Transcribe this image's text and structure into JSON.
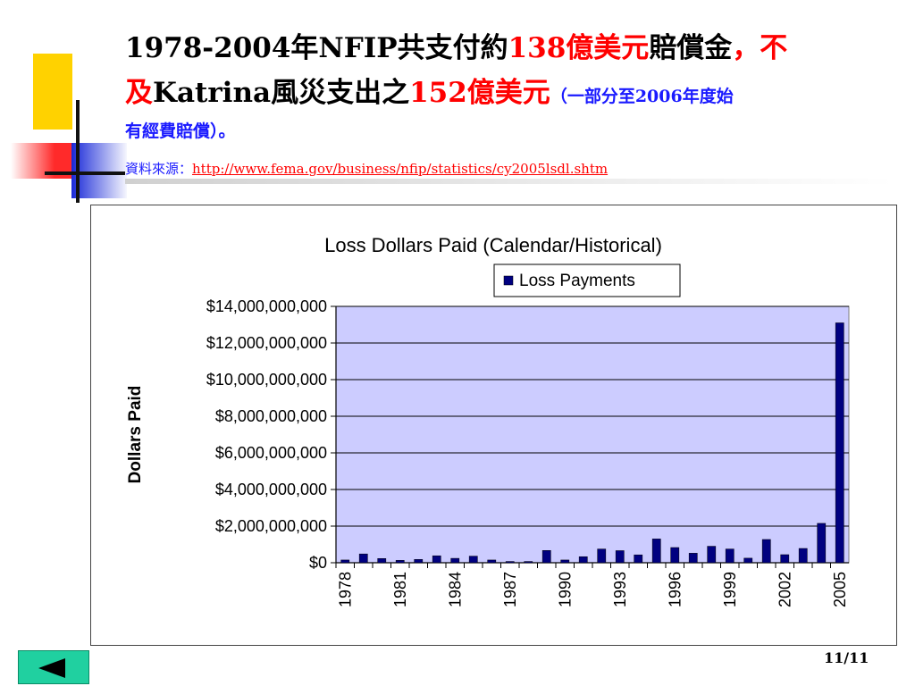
{
  "slide": {
    "title": {
      "p1": "1978-2004年NFIP共支付約",
      "p2": "138億美元",
      "p3": "賠償金",
      "p4": "，不",
      "p5": "及",
      "p6": "Katrina風災支出之",
      "p7": "152億美元",
      "p8": "（一部分至2006年度始",
      "p9": "有經費賠償）。"
    },
    "source_label": "資料來源：",
    "source_url": "http://www.fema.gov/business/nfip/statistics/cy2005lsdl.shtm",
    "page_number": "11/11"
  },
  "colors": {
    "title_red": "#ff0000",
    "title_blue": "#1a1aff",
    "plot_bg": "#ccccff",
    "bar": "#000080",
    "nav_button": "#20d0a0"
  },
  "icons": {
    "nav_back": "left-triangle-icon"
  },
  "chart_data": {
    "type": "bar",
    "title": "Loss Dollars Paid (Calendar/Historical)",
    "ylabel": "Dollars Paid",
    "xlabel": "",
    "legend": "top-center",
    "grid": true,
    "ylim": [
      0,
      14000000000
    ],
    "yticks": [
      "$0",
      "$2,000,000,000",
      "$4,000,000,000",
      "$6,000,000,000",
      "$8,000,000,000",
      "$10,000,000,000",
      "$12,000,000,000",
      "$14,000,000,000"
    ],
    "tick_labels": [
      "1978",
      "1981",
      "1984",
      "1987",
      "1990",
      "1993",
      "1996",
      "1999",
      "2002",
      "2005"
    ],
    "categories": [
      "1978",
      "1979",
      "1980",
      "1981",
      "1982",
      "1983",
      "1984",
      "1985",
      "1986",
      "1987",
      "1988",
      "1989",
      "1990",
      "1991",
      "1992",
      "1993",
      "1994",
      "1995",
      "1996",
      "1997",
      "1998",
      "1999",
      "2000",
      "2001",
      "2002",
      "2003",
      "2004",
      "2005"
    ],
    "series": [
      {
        "name": "Loss Payments",
        "values": [
          150000000,
          480000000,
          230000000,
          130000000,
          180000000,
          380000000,
          240000000,
          360000000,
          150000000,
          70000000,
          70000000,
          670000000,
          150000000,
          330000000,
          750000000,
          660000000,
          430000000,
          1300000000,
          830000000,
          520000000,
          900000000,
          750000000,
          250000000,
          1270000000,
          440000000,
          780000000,
          2150000000,
          13100000000
        ]
      }
    ]
  }
}
